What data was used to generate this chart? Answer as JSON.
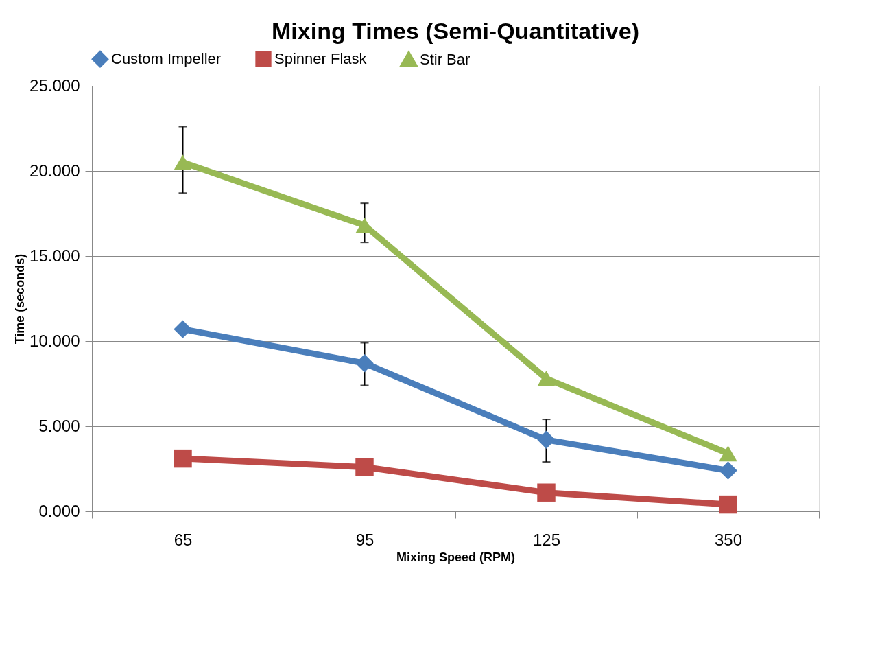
{
  "chart_data": {
    "type": "line",
    "title": "Mixing Times (Semi-Quantitative)",
    "xlabel": "Mixing Speed (RPM)",
    "ylabel": "Time (seconds)",
    "categories": [
      "65",
      "95",
      "125",
      "350"
    ],
    "ylim": [
      0,
      25
    ],
    "yticks": [
      {
        "value": 0,
        "label": "0.000"
      },
      {
        "value": 5,
        "label": "5.000"
      },
      {
        "value": 10,
        "label": "10.000"
      },
      {
        "value": 15,
        "label": "15.000"
      },
      {
        "value": 20,
        "label": "20.000"
      },
      {
        "value": 25,
        "label": "25.000"
      }
    ],
    "grid": "y",
    "legend": "top",
    "series": [
      {
        "name": "Custom Impeller",
        "color": "#4a7ebb",
        "marker": "diamond",
        "values": [
          10.7,
          8.7,
          4.2,
          2.4
        ],
        "errors": [
          null,
          [
            7.4,
            9.9
          ],
          [
            2.9,
            5.4
          ],
          null
        ]
      },
      {
        "name": "Spinner Flask",
        "color": "#be4b48",
        "marker": "square",
        "values": [
          3.1,
          2.6,
          1.1,
          0.4
        ]
      },
      {
        "name": "Stir Bar",
        "color": "#98b954",
        "marker": "triangle",
        "values": [
          20.5,
          16.8,
          7.8,
          3.4
        ],
        "errors": [
          [
            18.7,
            22.6
          ],
          [
            15.8,
            18.1
          ],
          null,
          null
        ]
      }
    ]
  }
}
